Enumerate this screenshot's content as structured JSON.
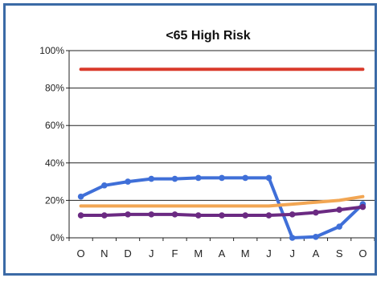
{
  "chart_data": {
    "type": "line",
    "title": "<65 High Risk",
    "categories": [
      "O",
      "N",
      "D",
      "J",
      "F",
      "M",
      "A",
      "M",
      "J",
      "J",
      "A",
      "S",
      "O"
    ],
    "ylim": [
      0,
      100
    ],
    "yticks": [
      "0%",
      "20%",
      "40%",
      "60%",
      "80%",
      "100%"
    ],
    "yticks_values": [
      0,
      20,
      40,
      60,
      80,
      100
    ],
    "grid": true,
    "series": [
      {
        "color": "#d93a2b",
        "markers": false,
        "values": [
          90,
          90,
          90,
          90,
          90,
          90,
          90,
          90,
          90,
          90,
          90,
          90,
          90
        ]
      },
      {
        "color": "#3f6fd8",
        "markers": true,
        "values": [
          22,
          28,
          30,
          31.5,
          31.5,
          32,
          32,
          32,
          32,
          0,
          0.5,
          6,
          18
        ]
      },
      {
        "color": "#f2a653",
        "markers": false,
        "values": [
          17,
          17,
          17,
          17,
          17,
          17,
          17,
          17,
          17,
          18,
          19,
          20,
          22
        ]
      },
      {
        "color": "#6b2a82",
        "markers": true,
        "values": [
          12,
          12,
          12.5,
          12.5,
          12.5,
          12,
          12,
          12,
          12,
          12.5,
          13.5,
          15,
          16.5
        ]
      }
    ]
  }
}
